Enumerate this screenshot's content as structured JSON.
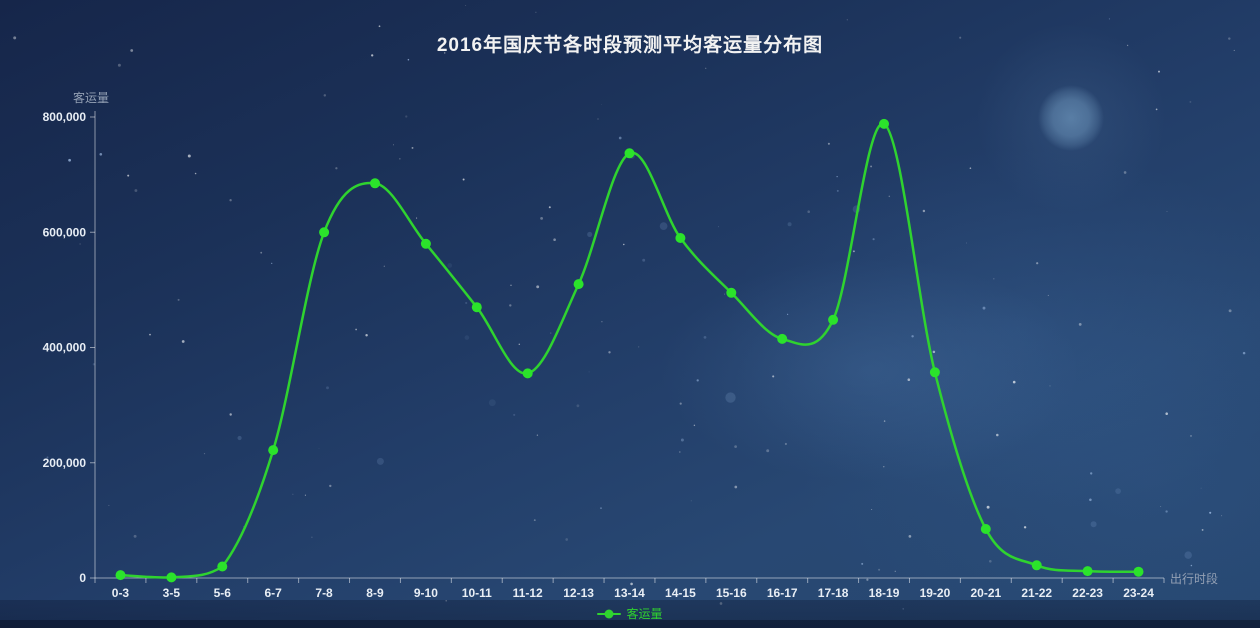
{
  "chart_data": {
    "type": "line",
    "title": "2016年国庆节各时段预测平均客运量分布图",
    "categories": [
      "0-3",
      "3-5",
      "5-6",
      "6-7",
      "7-8",
      "8-9",
      "9-10",
      "10-11",
      "11-12",
      "12-13",
      "13-14",
      "14-15",
      "15-16",
      "16-17",
      "17-18",
      "18-19",
      "19-20",
      "20-21",
      "21-22",
      "22-23",
      "23-24"
    ],
    "series": [
      {
        "name": "客运量",
        "values": [
          5000,
          1000,
          20000,
          222000,
          600000,
          685000,
          580000,
          470000,
          355000,
          510000,
          737000,
          590000,
          495000,
          415000,
          448000,
          788000,
          357000,
          85000,
          22000,
          12000,
          11000
        ]
      }
    ],
    "xlabel": "出行时段",
    "ylabel": "客运量",
    "ylim": [
      0,
      800000
    ],
    "y_ticks": [
      0,
      200000,
      400000,
      600000,
      800000
    ],
    "grid": false,
    "smooth": true,
    "legend": {
      "position": "bottom",
      "entries": [
        "客运量"
      ]
    },
    "colors": {
      "line": "#2fd32f",
      "point": "#2be32b",
      "axis": "rgba(255,255,255,0.5)",
      "tick_label": "#e8eef5",
      "axis_name": "#93a0b4",
      "title": "#f2f2f2",
      "legend_text": "#2fd32f",
      "star": "#ffffff",
      "moon": "#7da8cd"
    }
  }
}
